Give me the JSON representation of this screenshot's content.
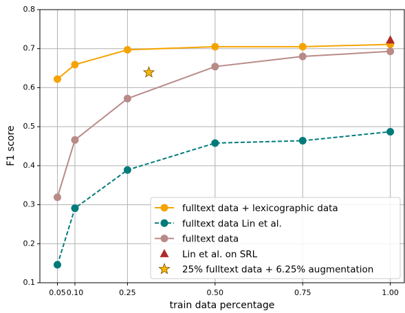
{
  "chart_data": {
    "type": "line",
    "xlabel": "train data percentage",
    "ylabel": "F1 score",
    "xlim": [
      0,
      1.04
    ],
    "ylim": [
      0.1,
      0.8
    ],
    "xticks": [
      0.05,
      {
        "value": 0.1,
        "label": "0.10"
      },
      0.25,
      {
        "value": 0.5,
        "label": "0.50"
      },
      0.75,
      {
        "value": 1,
        "label": "1.00"
      }
    ],
    "yticks": [
      0.1,
      0.2,
      0.3,
      0.4,
      0.5,
      0.6,
      0.7,
      0.8
    ],
    "grid": true,
    "legend": "lower right",
    "series": [
      {
        "name": "fulltext data + lexicographic data",
        "color": "#f5a300",
        "marker": "circle",
        "linestyle": "solid",
        "x": [
          0.05,
          0.1,
          0.25,
          0.5,
          0.75,
          1
        ],
        "values": [
          0.622,
          0.659,
          0.697,
          0.705,
          0.705,
          0.711
        ]
      },
      {
        "name": "fulltext data Lin et al.",
        "color": "#007b7b",
        "marker": "circle",
        "linestyle": "dashed",
        "x": [
          0.05,
          0.1,
          0.25,
          0.5,
          0.75,
          1
        ],
        "values": [
          0.146,
          0.291,
          0.389,
          0.458,
          0.464,
          0.487
        ]
      },
      {
        "name": "fulltext data",
        "color": "#b88a88",
        "marker": "circle",
        "linestyle": "solid",
        "x": [
          0.05,
          0.1,
          0.25,
          0.5,
          0.75,
          1
        ],
        "values": [
          0.319,
          0.466,
          0.572,
          0.654,
          0.68,
          0.693
        ]
      },
      {
        "name": "Lin et al. on SRL",
        "color": "#b02a2a",
        "marker": "triangle",
        "linestyle": "none",
        "x": [
          1
        ],
        "values": [
          0.722
        ]
      },
      {
        "name": "25% fulltext data + 6.25% augmentation",
        "color": "#f5b800",
        "marker": "star",
        "linestyle": "none",
        "x": [
          0.311
        ],
        "values": [
          0.639
        ]
      }
    ]
  }
}
